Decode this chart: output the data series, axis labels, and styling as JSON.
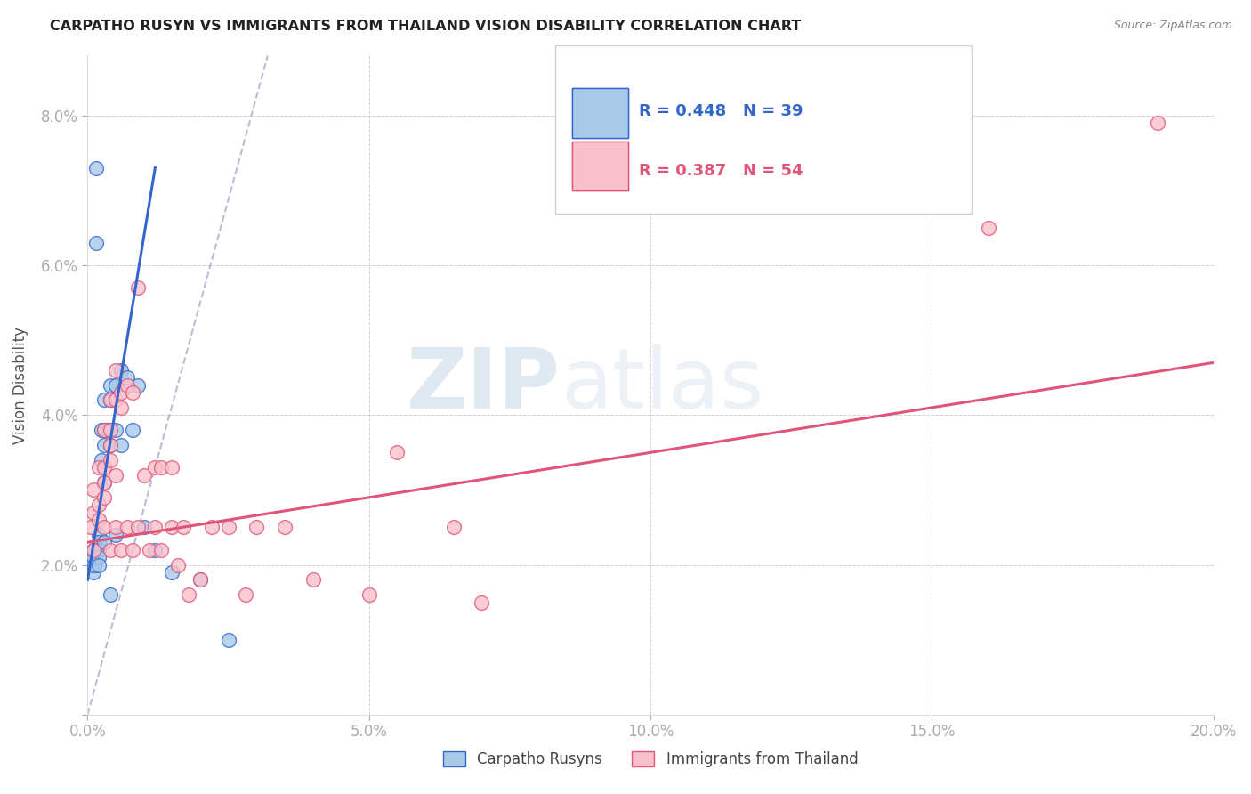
{
  "title": "CARPATHO RUSYN VS IMMIGRANTS FROM THAILAND VISION DISABILITY CORRELATION CHART",
  "source": "Source: ZipAtlas.com",
  "ylabel": "Vision Disability",
  "legend_label_blue": "Carpatho Rusyns",
  "legend_label_pink": "Immigrants from Thailand",
  "r_blue": 0.448,
  "n_blue": 39,
  "r_pink": 0.387,
  "n_pink": 54,
  "xlim": [
    0.0,
    0.2
  ],
  "ylim": [
    0.0,
    0.088
  ],
  "xticks": [
    0.0,
    0.05,
    0.1,
    0.15,
    0.2
  ],
  "yticks": [
    0.0,
    0.02,
    0.04,
    0.06,
    0.08
  ],
  "ytick_labels": [
    "",
    "2.0%",
    "4.0%",
    "6.0%",
    "8.0%"
  ],
  "xtick_labels": [
    "0.0%",
    "5.0%",
    "10.0%",
    "15.0%",
    "20.0%"
  ],
  "color_blue": "#a8c8e8",
  "color_pink": "#f9c0cc",
  "color_blue_line": "#3366cc",
  "color_pink_line": "#e05577",
  "color_ref_line": "#aaaacc",
  "background_color": "#ffffff",
  "watermark_zip": "ZIP",
  "watermark_atlas": "atlas",
  "blue_line_x": [
    0.0,
    0.012
  ],
  "blue_line_y": [
    0.018,
    0.073
  ],
  "pink_line_x": [
    0.0,
    0.2
  ],
  "pink_line_y": [
    0.023,
    0.047
  ],
  "ref_line_x": [
    0.0,
    0.032
  ],
  "ref_line_y": [
    0.0,
    0.088
  ],
  "blue_x": [
    0.0005,
    0.0008,
    0.001,
    0.001,
    0.001,
    0.0012,
    0.0012,
    0.0015,
    0.0015,
    0.002,
    0.002,
    0.002,
    0.002,
    0.002,
    0.0025,
    0.0025,
    0.003,
    0.003,
    0.003,
    0.003,
    0.003,
    0.0035,
    0.004,
    0.004,
    0.004,
    0.004,
    0.005,
    0.005,
    0.005,
    0.006,
    0.006,
    0.007,
    0.008,
    0.009,
    0.01,
    0.012,
    0.015,
    0.02,
    0.025
  ],
  "blue_y": [
    0.021,
    0.02,
    0.022,
    0.021,
    0.019,
    0.022,
    0.02,
    0.063,
    0.073,
    0.024,
    0.023,
    0.022,
    0.021,
    0.02,
    0.038,
    0.034,
    0.042,
    0.038,
    0.036,
    0.031,
    0.023,
    0.038,
    0.044,
    0.042,
    0.036,
    0.016,
    0.044,
    0.038,
    0.024,
    0.046,
    0.036,
    0.045,
    0.038,
    0.044,
    0.025,
    0.022,
    0.019,
    0.018,
    0.01
  ],
  "pink_x": [
    0.0005,
    0.001,
    0.001,
    0.001,
    0.002,
    0.002,
    0.002,
    0.003,
    0.003,
    0.003,
    0.003,
    0.003,
    0.004,
    0.004,
    0.004,
    0.004,
    0.004,
    0.005,
    0.005,
    0.005,
    0.005,
    0.006,
    0.006,
    0.006,
    0.007,
    0.007,
    0.008,
    0.008,
    0.009,
    0.009,
    0.01,
    0.011,
    0.012,
    0.012,
    0.013,
    0.013,
    0.015,
    0.015,
    0.016,
    0.017,
    0.018,
    0.02,
    0.022,
    0.025,
    0.028,
    0.03,
    0.035,
    0.04,
    0.05,
    0.055,
    0.065,
    0.07,
    0.16,
    0.19
  ],
  "pink_y": [
    0.025,
    0.03,
    0.027,
    0.022,
    0.033,
    0.028,
    0.026,
    0.038,
    0.033,
    0.031,
    0.029,
    0.025,
    0.042,
    0.038,
    0.036,
    0.034,
    0.022,
    0.046,
    0.042,
    0.032,
    0.025,
    0.043,
    0.041,
    0.022,
    0.044,
    0.025,
    0.043,
    0.022,
    0.057,
    0.025,
    0.032,
    0.022,
    0.033,
    0.025,
    0.033,
    0.022,
    0.033,
    0.025,
    0.02,
    0.025,
    0.016,
    0.018,
    0.025,
    0.025,
    0.016,
    0.025,
    0.025,
    0.018,
    0.016,
    0.035,
    0.025,
    0.015,
    0.065,
    0.079
  ]
}
